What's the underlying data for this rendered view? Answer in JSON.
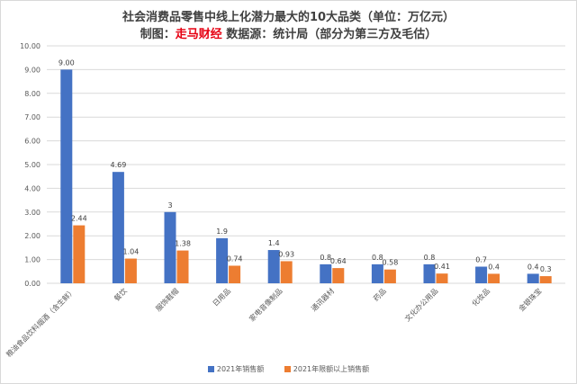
{
  "title_line1": "社会消费品零售中线上化潜力最大的10大品类（单位：万亿元）",
  "title_line2_prefix": "制图：",
  "title_line2_brand": "走马财经",
  "title_line2_suffix": " 数据源：统计局（部分为第三方及毛估）",
  "colors": {
    "series1": "#4472c4",
    "series2": "#ed7d31",
    "grid": "#d9d9d9",
    "brand": "#e60012"
  },
  "chart_data": {
    "type": "bar",
    "categories": [
      "粮油食品饮料烟酒（含生鲜）",
      "餐饮",
      "服饰鞋帽",
      "日用品",
      "家电音像制品",
      "通讯器材",
      "药品",
      "文化办公用品",
      "化妆品",
      "金银珠宝"
    ],
    "series": [
      {
        "name": "2021年销售额",
        "values": [
          9.0,
          4.69,
          3,
          1.9,
          1.4,
          0.8,
          0.8,
          0.8,
          0.7,
          0.4
        ],
        "labels": [
          "9.00",
          "4.69",
          "3",
          "1.9",
          "1.4",
          "0.8",
          "0.8",
          "0.8",
          "0.7",
          "0.4"
        ]
      },
      {
        "name": "2021年限额以上销售额",
        "values": [
          2.44,
          1.04,
          1.38,
          0.74,
          0.93,
          0.64,
          0.58,
          0.41,
          0.4,
          0.3
        ],
        "labels": [
          "2.44",
          "1.04",
          "1.38",
          "0.74",
          "0.93",
          "0.64",
          "0.58",
          "0.41",
          "0.4",
          "0.3"
        ]
      }
    ],
    "ylim": [
      0,
      10
    ],
    "yticks": [
      "0.00",
      "1.00",
      "2.00",
      "3.00",
      "4.00",
      "5.00",
      "6.00",
      "7.00",
      "8.00",
      "9.00",
      "10.00"
    ],
    "grid": true,
    "legend_position": "bottom"
  }
}
